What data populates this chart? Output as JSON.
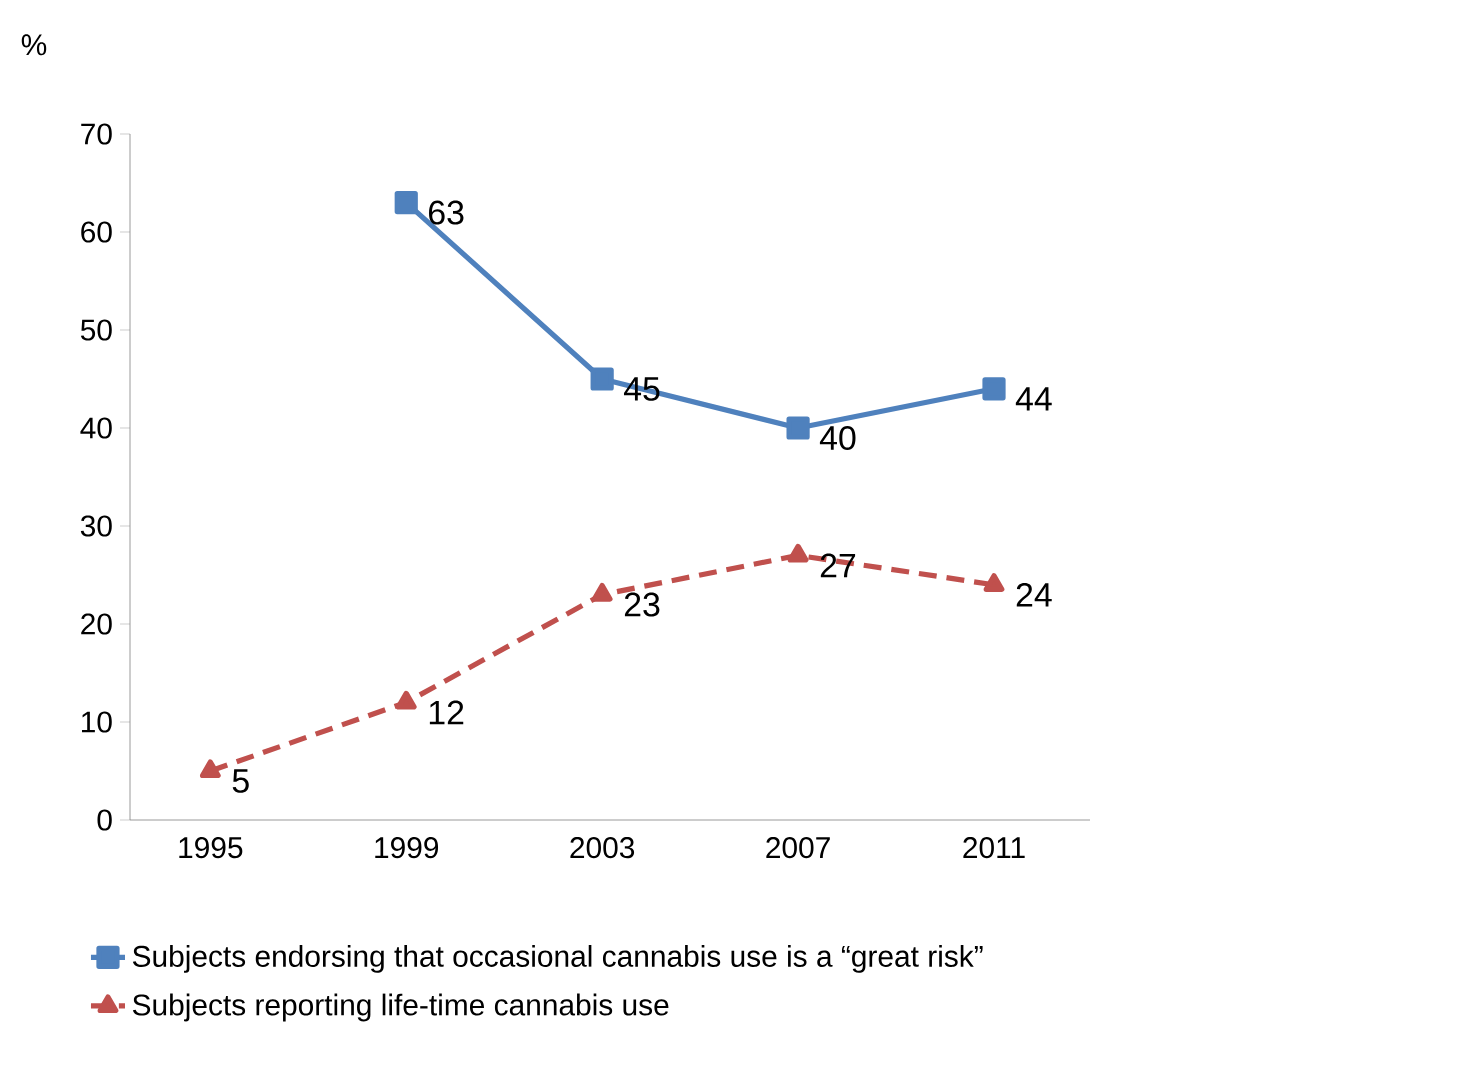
{
  "chart_data": {
    "type": "line",
    "ylabel": "%",
    "categories": [
      "1995",
      "1999",
      "2003",
      "2007",
      "2011"
    ],
    "series": [
      {
        "name": "Subjects endorsing that occasional cannabis  use is a “great risk”",
        "color": "#4f81bd",
        "values": [
          null,
          63,
          45,
          40,
          44
        ],
        "marker": "square",
        "line_style": "solid"
      },
      {
        "name": "Subjects reporting life-time cannabis use",
        "color": "#c0504d",
        "values": [
          5,
          12,
          23,
          27,
          24
        ],
        "marker": "triangle",
        "line_style": "dashed"
      }
    ],
    "ylim": [
      0,
      70
    ],
    "yticks": [
      0,
      10,
      20,
      30,
      40,
      50,
      60,
      70
    ],
    "grid": false,
    "legend": "bottom",
    "data_labels": true
  }
}
